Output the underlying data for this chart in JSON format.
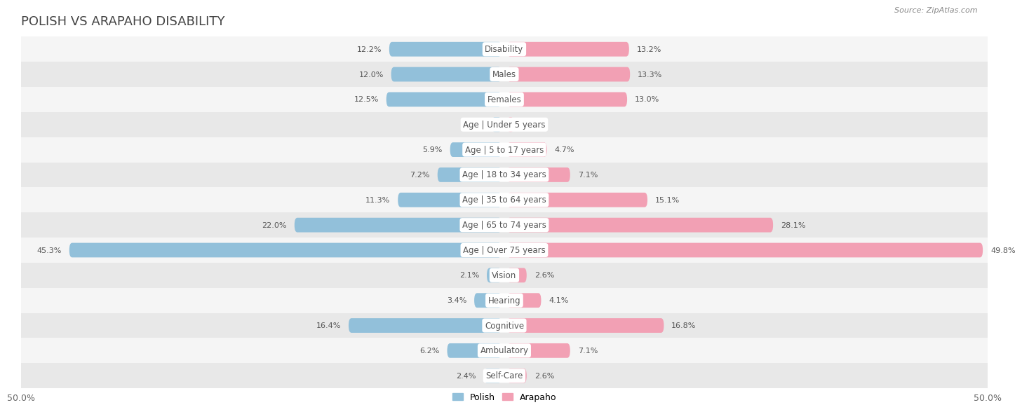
{
  "title": "POLISH VS ARAPAHO DISABILITY",
  "source": "Source: ZipAtlas.com",
  "categories": [
    "Disability",
    "Males",
    "Females",
    "Age | Under 5 years",
    "Age | 5 to 17 years",
    "Age | 18 to 34 years",
    "Age | 35 to 64 years",
    "Age | 65 to 74 years",
    "Age | Over 75 years",
    "Vision",
    "Hearing",
    "Cognitive",
    "Ambulatory",
    "Self-Care"
  ],
  "polish_values": [
    12.2,
    12.0,
    12.5,
    1.6,
    5.9,
    7.2,
    11.3,
    22.0,
    45.3,
    2.1,
    3.4,
    16.4,
    6.2,
    2.4
  ],
  "arapaho_values": [
    13.2,
    13.3,
    13.0,
    1.3,
    4.7,
    7.1,
    15.1,
    28.1,
    49.8,
    2.6,
    4.1,
    16.8,
    7.1,
    2.6
  ],
  "polish_color": "#92C0DA",
  "arapaho_color": "#F2A0B4",
  "polish_label": "Polish",
  "arapaho_label": "Arapaho",
  "max_value": 50.0,
  "bar_height": 0.58,
  "bg_color": "#ffffff",
  "row_bg_light": "#f5f5f5",
  "row_bg_dark": "#e8e8e8",
  "label_fontsize": 8.5,
  "title_fontsize": 13,
  "value_fontsize": 8,
  "source_fontsize": 8
}
